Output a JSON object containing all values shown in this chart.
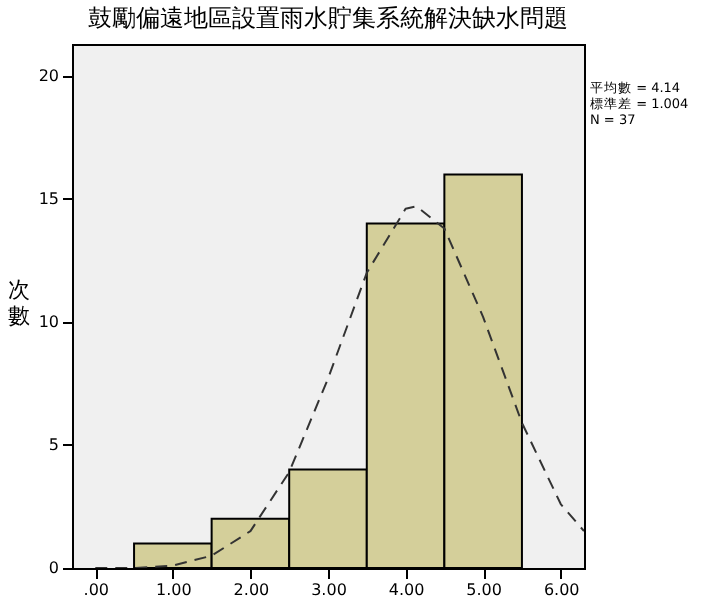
{
  "chart_data": {
    "type": "histogram",
    "title": "鼓勵偏遠地區設置雨水貯集系統解決缺水問題",
    "ylabel": "次數",
    "bins": [
      0.5,
      1.5,
      2.5,
      3.5,
      4.5,
      5.5
    ],
    "values": [
      1,
      2,
      4,
      14,
      16
    ],
    "color": "#d4cf9a",
    "series": [
      {
        "type": "line",
        "color": "#333333",
        "line_style": "dashed",
        "x": [
          0,
          0.5,
          1,
          1.5,
          2,
          2.5,
          3,
          3.5,
          4,
          4.14,
          4.5,
          5,
          5.5,
          6,
          6.3
        ],
        "values": [
          0,
          0,
          0.1,
          0.5,
          1.5,
          3.9,
          7.7,
          12,
          14.6,
          14.7,
          13.8,
          10.2,
          5.9,
          2.6,
          1.5
        ]
      }
    ],
    "xlim": [
      -0.3,
      6.3
    ],
    "xticks": [
      {
        "value": 0,
        "label": ".00"
      },
      {
        "value": 1,
        "label": "1.00"
      },
      {
        "value": 2,
        "label": "2.00"
      },
      {
        "value": 3,
        "label": "3.00"
      },
      {
        "value": 4,
        "label": "4.00"
      },
      {
        "value": 5,
        "label": "5.00"
      },
      {
        "value": 6,
        "label": "6.00"
      }
    ],
    "ylim": [
      0,
      21.3
    ],
    "yticks": [
      0,
      5,
      10,
      15,
      20
    ],
    "grid": false,
    "annotations": [
      "平均數 = 4.14",
      "標準差 = 1.004",
      "N = 37"
    ]
  }
}
